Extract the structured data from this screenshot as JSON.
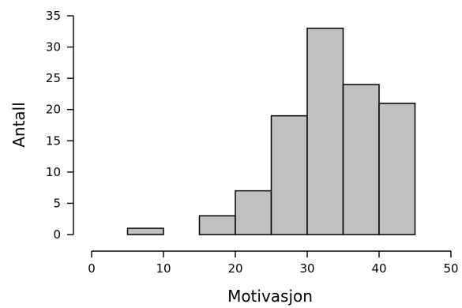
{
  "chart_data": {
    "type": "bar",
    "title": "",
    "xlabel": "Motivasjon",
    "ylabel": "Antall",
    "bin_edges": [
      5,
      10,
      15,
      20,
      25,
      30,
      35,
      40,
      45
    ],
    "values": [
      1,
      0,
      3,
      7,
      19,
      33,
      24,
      21
    ],
    "xlim": [
      0,
      50
    ],
    "ylim": [
      0,
      35
    ],
    "x_ticks": [
      0,
      10,
      20,
      30,
      40,
      50
    ],
    "y_ticks": [
      0,
      5,
      10,
      15,
      20,
      25,
      30,
      35
    ],
    "grid": false,
    "legend": "none",
    "bar_color": "#c0c0c0",
    "edge_color": "#000000"
  }
}
